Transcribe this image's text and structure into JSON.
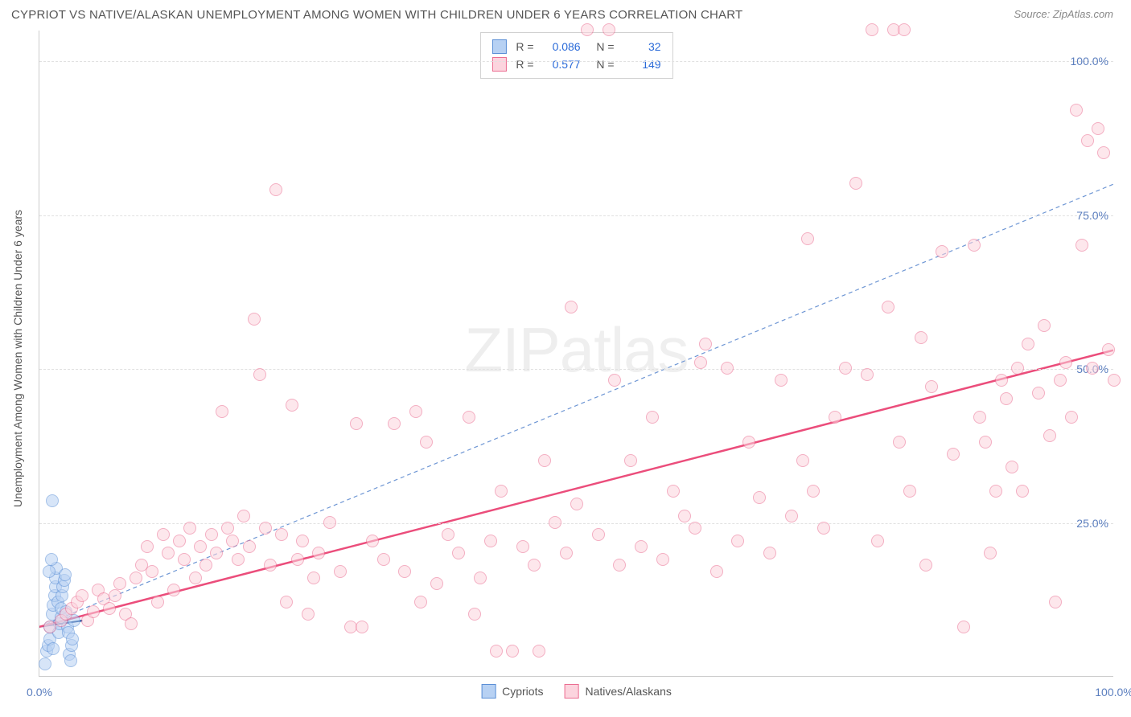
{
  "chart": {
    "type": "scatter",
    "title": "CYPRIOT VS NATIVE/ALASKAN UNEMPLOYMENT AMONG WOMEN WITH CHILDREN UNDER 6 YEARS CORRELATION CHART",
    "source": "Source: ZipAtlas.com",
    "ylabel": "Unemployment Among Women with Children Under 6 years",
    "watermark_text": "ZIPatlas",
    "background_color": "#ffffff",
    "axis_color": "#cccccc",
    "grid_color": "#e1e1e1",
    "tick_label_color": "#5c7fbf",
    "text_color": "#555555",
    "tick_fontsize": 14,
    "title_fontsize": 15,
    "xlim": [
      0,
      100
    ],
    "ylim": [
      0,
      105
    ],
    "xticks": [
      {
        "v": 0,
        "label": "0.0%"
      },
      {
        "v": 100,
        "label": "100.0%"
      }
    ],
    "yticks": [
      {
        "v": 25,
        "label": "25.0%"
      },
      {
        "v": 50,
        "label": "50.0%"
      },
      {
        "v": 75,
        "label": "75.0%"
      },
      {
        "v": 100,
        "label": "100.0%"
      }
    ],
    "marker_radius": 8,
    "marker_stroke_width": 1.2,
    "series": [
      {
        "name": "Cypriots",
        "fill_color": "#b7d1f3",
        "stroke_color": "#5b8fd6",
        "fill_opacity": 0.55,
        "R": "0.086",
        "N": "32",
        "trend": {
          "x1": 0,
          "y1": 8,
          "x2": 4,
          "y2": 9,
          "color": "#0b3f91",
          "width": 2,
          "dash": "none"
        },
        "data": [
          [
            0.5,
            2
          ],
          [
            0.7,
            4
          ],
          [
            0.8,
            5
          ],
          [
            1,
            6
          ],
          [
            1,
            8
          ],
          [
            1.2,
            10
          ],
          [
            1.3,
            11.5
          ],
          [
            1.4,
            13
          ],
          [
            1.5,
            14.5
          ],
          [
            1.5,
            16
          ],
          [
            1.6,
            17.5
          ],
          [
            1.7,
            12
          ],
          [
            1.8,
            7
          ],
          [
            1.9,
            8.5
          ],
          [
            2,
            9.5
          ],
          [
            2,
            11
          ],
          [
            2.1,
            13
          ],
          [
            2.2,
            14.5
          ],
          [
            2.3,
            15.5
          ],
          [
            2.4,
            16.5
          ],
          [
            2.5,
            10.5
          ],
          [
            2.6,
            8
          ],
          [
            2.7,
            7
          ],
          [
            2.8,
            3.5
          ],
          [
            2.9,
            2.5
          ],
          [
            3,
            5
          ],
          [
            3.1,
            6
          ],
          [
            3.2,
            9
          ],
          [
            1.2,
            28.5
          ],
          [
            1.1,
            19
          ],
          [
            0.9,
            17
          ],
          [
            1.3,
            4.5
          ]
        ]
      },
      {
        "name": "Natives/Alaskans",
        "fill_color": "#fcd4de",
        "stroke_color": "#eb6d91",
        "fill_opacity": 0.55,
        "R": "0.577",
        "N": "149",
        "trend": {
          "x1": 0,
          "y1": 8,
          "x2": 100,
          "y2": 53,
          "color": "#eb4d7b",
          "width": 2.5,
          "dash": "none"
        },
        "data": [
          [
            1,
            8
          ],
          [
            2,
            9
          ],
          [
            2.5,
            10
          ],
          [
            3,
            11
          ],
          [
            3.5,
            12
          ],
          [
            4,
            13
          ],
          [
            4.5,
            9
          ],
          [
            5,
            10.5
          ],
          [
            5.5,
            14
          ],
          [
            6,
            12.5
          ],
          [
            6.5,
            11
          ],
          [
            7,
            13
          ],
          [
            7.5,
            15
          ],
          [
            8,
            10
          ],
          [
            8.5,
            8.5
          ],
          [
            9,
            16
          ],
          [
            9.5,
            18
          ],
          [
            10,
            21
          ],
          [
            10.5,
            17
          ],
          [
            11,
            12
          ],
          [
            11.5,
            23
          ],
          [
            12,
            20
          ],
          [
            12.5,
            14
          ],
          [
            13,
            22
          ],
          [
            13.5,
            19
          ],
          [
            14,
            24
          ],
          [
            14.5,
            16
          ],
          [
            15,
            21
          ],
          [
            15.5,
            18
          ],
          [
            16,
            23
          ],
          [
            16.5,
            20
          ],
          [
            17,
            43
          ],
          [
            17.5,
            24
          ],
          [
            18,
            22
          ],
          [
            18.5,
            19
          ],
          [
            19,
            26
          ],
          [
            19.5,
            21
          ],
          [
            20,
            58
          ],
          [
            20.5,
            49
          ],
          [
            21,
            24
          ],
          [
            21.5,
            18
          ],
          [
            22,
            79
          ],
          [
            22.5,
            23
          ],
          [
            23,
            12
          ],
          [
            23.5,
            44
          ],
          [
            24,
            19
          ],
          [
            24.5,
            22
          ],
          [
            25,
            10
          ],
          [
            25.5,
            16
          ],
          [
            26,
            20
          ],
          [
            27,
            25
          ],
          [
            28,
            17
          ],
          [
            29,
            8
          ],
          [
            29.5,
            41
          ],
          [
            30,
            8
          ],
          [
            31,
            22
          ],
          [
            32,
            19
          ],
          [
            33,
            41
          ],
          [
            34,
            17
          ],
          [
            35,
            43
          ],
          [
            35.5,
            12
          ],
          [
            36,
            38
          ],
          [
            37,
            15
          ],
          [
            38,
            23
          ],
          [
            39,
            20
          ],
          [
            40,
            42
          ],
          [
            40.5,
            10
          ],
          [
            41,
            16
          ],
          [
            42,
            22
          ],
          [
            42.5,
            4
          ],
          [
            43,
            30
          ],
          [
            44,
            4
          ],
          [
            45,
            21
          ],
          [
            46,
            18
          ],
          [
            46.5,
            4
          ],
          [
            47,
            35
          ],
          [
            48,
            25
          ],
          [
            49,
            20
          ],
          [
            49.5,
            60
          ],
          [
            50,
            28
          ],
          [
            51,
            105
          ],
          [
            52,
            23
          ],
          [
            53,
            105
          ],
          [
            53.5,
            48
          ],
          [
            54,
            18
          ],
          [
            55,
            35
          ],
          [
            56,
            21
          ],
          [
            57,
            42
          ],
          [
            58,
            19
          ],
          [
            59,
            30
          ],
          [
            60,
            26
          ],
          [
            61,
            24
          ],
          [
            61.5,
            51
          ],
          [
            62,
            54
          ],
          [
            63,
            17
          ],
          [
            64,
            50
          ],
          [
            65,
            22
          ],
          [
            66,
            38
          ],
          [
            67,
            29
          ],
          [
            68,
            20
          ],
          [
            69,
            48
          ],
          [
            70,
            26
          ],
          [
            71,
            35
          ],
          [
            71.5,
            71
          ],
          [
            72,
            30
          ],
          [
            73,
            24
          ],
          [
            74,
            42
          ],
          [
            75,
            50
          ],
          [
            76,
            80
          ],
          [
            77,
            49
          ],
          [
            77.5,
            105
          ],
          [
            78,
            22
          ],
          [
            79,
            60
          ],
          [
            79.5,
            105
          ],
          [
            80,
            38
          ],
          [
            80.5,
            105
          ],
          [
            81,
            30
          ],
          [
            82,
            55
          ],
          [
            82.5,
            18
          ],
          [
            83,
            47
          ],
          [
            84,
            69
          ],
          [
            85,
            36
          ],
          [
            86,
            8
          ],
          [
            87,
            70
          ],
          [
            87.5,
            42
          ],
          [
            88,
            38
          ],
          [
            88.5,
            20
          ],
          [
            89,
            30
          ],
          [
            89.5,
            48
          ],
          [
            90,
            45
          ],
          [
            90.5,
            34
          ],
          [
            91,
            50
          ],
          [
            91.5,
            30
          ],
          [
            92,
            54
          ],
          [
            93,
            46
          ],
          [
            93.5,
            57
          ],
          [
            94,
            39
          ],
          [
            94.5,
            12
          ],
          [
            95,
            48
          ],
          [
            95.5,
            51
          ],
          [
            96,
            42
          ],
          [
            96.5,
            92
          ],
          [
            97,
            70
          ],
          [
            97.5,
            87
          ],
          [
            98,
            50
          ],
          [
            98.5,
            89
          ],
          [
            99,
            85
          ],
          [
            99.5,
            53
          ],
          [
            100,
            48
          ]
        ]
      }
    ],
    "reference_line": {
      "x1": 0,
      "y1": 8,
      "x2": 100,
      "y2": 80,
      "color": "#6e96d4",
      "width": 1.2,
      "dash": "5,4"
    },
    "legend_bottom": [
      {
        "label": "Cypriots",
        "fill": "#b7d1f3",
        "stroke": "#5b8fd6"
      },
      {
        "label": "Natives/Alaskans",
        "fill": "#fcd4de",
        "stroke": "#eb6d91"
      }
    ]
  }
}
